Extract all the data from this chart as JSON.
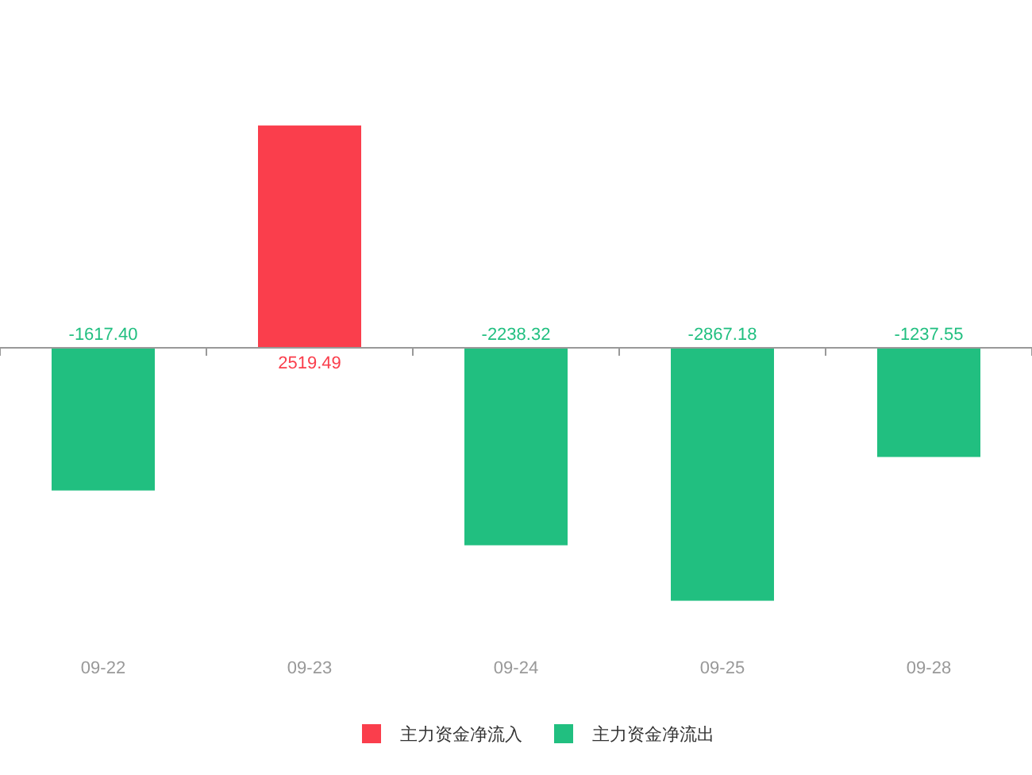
{
  "chart_data": {
    "type": "bar",
    "categories": [
      "09-22",
      "09-23",
      "09-24",
      "09-25",
      "09-28"
    ],
    "legend": "bottom",
    "tick_labels": "x",
    "series": [
      {
        "name": "主力资金净流入",
        "color": "#fa3e4c",
        "values": [
          null,
          2519.49,
          null,
          null,
          null
        ],
        "value_labels": [
          null,
          "2519.49",
          null,
          null,
          null
        ]
      },
      {
        "name": "主力资金净流出",
        "color": "#21bf80",
        "values": [
          -1617.4,
          null,
          -2238.32,
          -2867.18,
          -1237.55
        ],
        "value_labels": [
          "-1617.40",
          null,
          "-2238.32",
          "-2867.18",
          "-1237.55"
        ]
      }
    ]
  }
}
